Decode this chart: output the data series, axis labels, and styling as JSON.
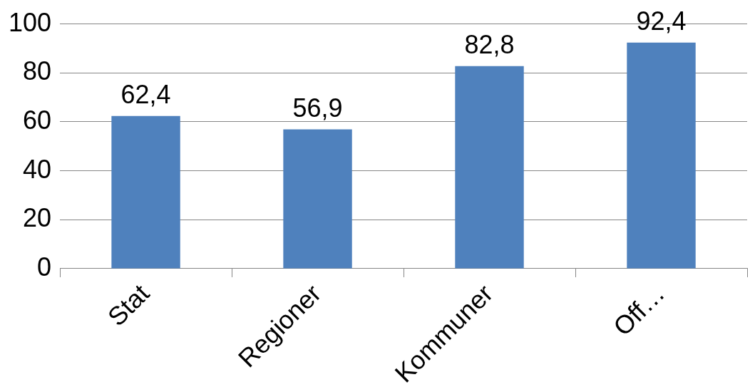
{
  "chart_data": {
    "type": "bar",
    "categories": [
      "Stat",
      "Regioner",
      "Kommuner",
      "Off…"
    ],
    "values": [
      62.4,
      56.9,
      82.8,
      92.4
    ],
    "value_labels": [
      "62,4",
      "56,9",
      "82,8",
      "92,4"
    ],
    "color": "#4f81bd",
    "ylim": [
      0,
      100
    ],
    "yticks": [
      0,
      20,
      40,
      60,
      80,
      100
    ],
    "grid": "y",
    "legend": false
  }
}
